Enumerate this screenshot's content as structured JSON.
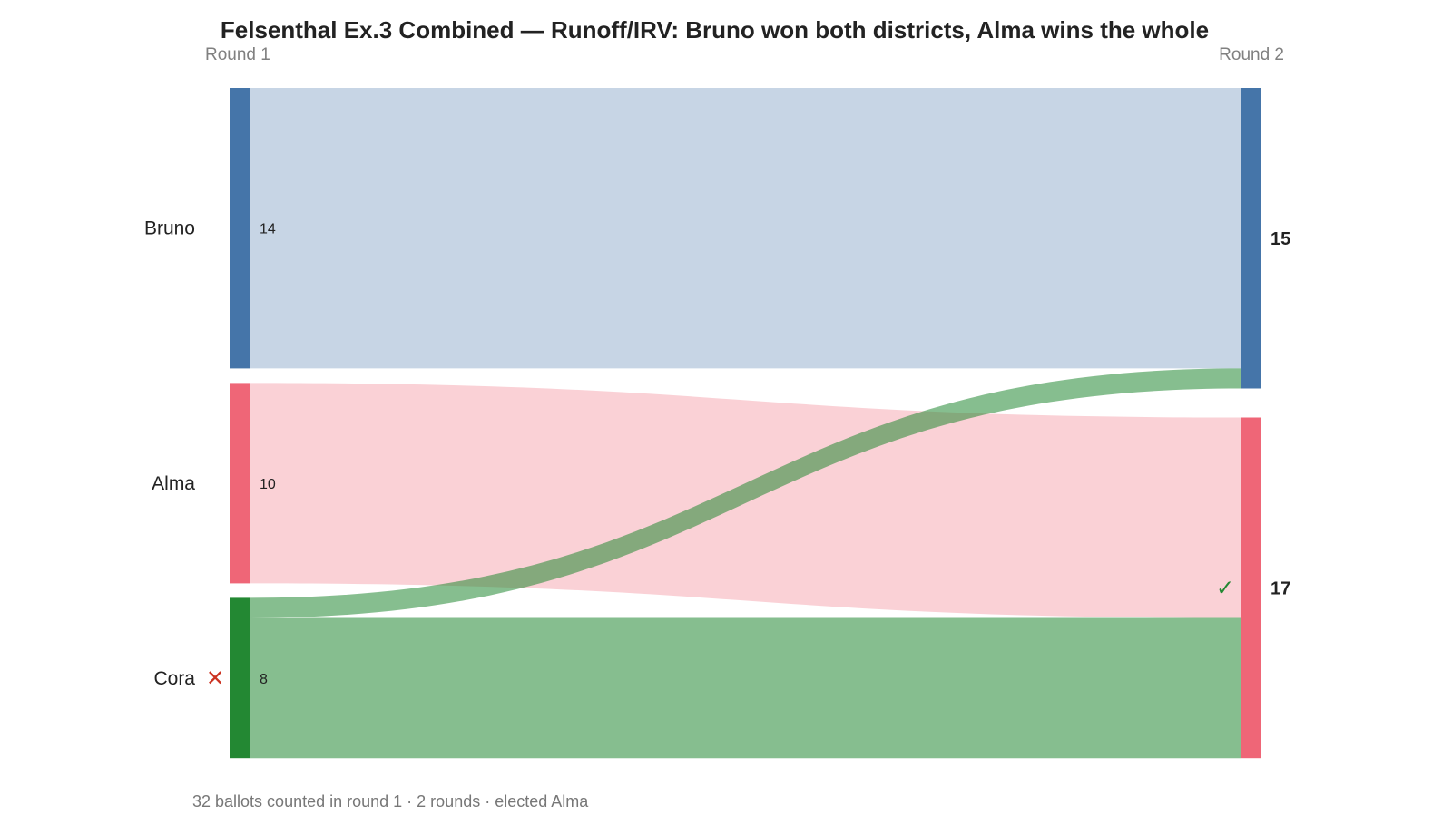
{
  "chart_data": {
    "type": "sankey",
    "title": "Felsenthal Ex.3 Combined — Runoff/IRV: Bruno won both districts, Alma wins the whole",
    "footer": "32 ballots counted in round 1 · 2 rounds · elected Alma",
    "rounds": [
      "Round 1",
      "Round 2"
    ],
    "colors": {
      "Bruno": "#4575a9",
      "Alma": "#ef6677",
      "Cora": "#238833"
    },
    "round1": [
      {
        "candidate": "Bruno",
        "votes": 14,
        "eliminated": false
      },
      {
        "candidate": "Alma",
        "votes": 10,
        "eliminated": false
      },
      {
        "candidate": "Cora",
        "votes": 8,
        "eliminated": true
      }
    ],
    "round2": [
      {
        "candidate": "Bruno",
        "votes": 15,
        "elected": false
      },
      {
        "candidate": "Alma",
        "votes": 17,
        "elected": true
      }
    ],
    "flows": [
      {
        "from": "Bruno",
        "to": "Bruno",
        "value": 14
      },
      {
        "from": "Alma",
        "to": "Alma",
        "value": 10
      },
      {
        "from": "Cora",
        "to": "Bruno",
        "value": 1
      },
      {
        "from": "Cora",
        "to": "Alma",
        "value": 7
      }
    ],
    "markers": {
      "eliminated": "✕",
      "elected": "✓"
    }
  }
}
